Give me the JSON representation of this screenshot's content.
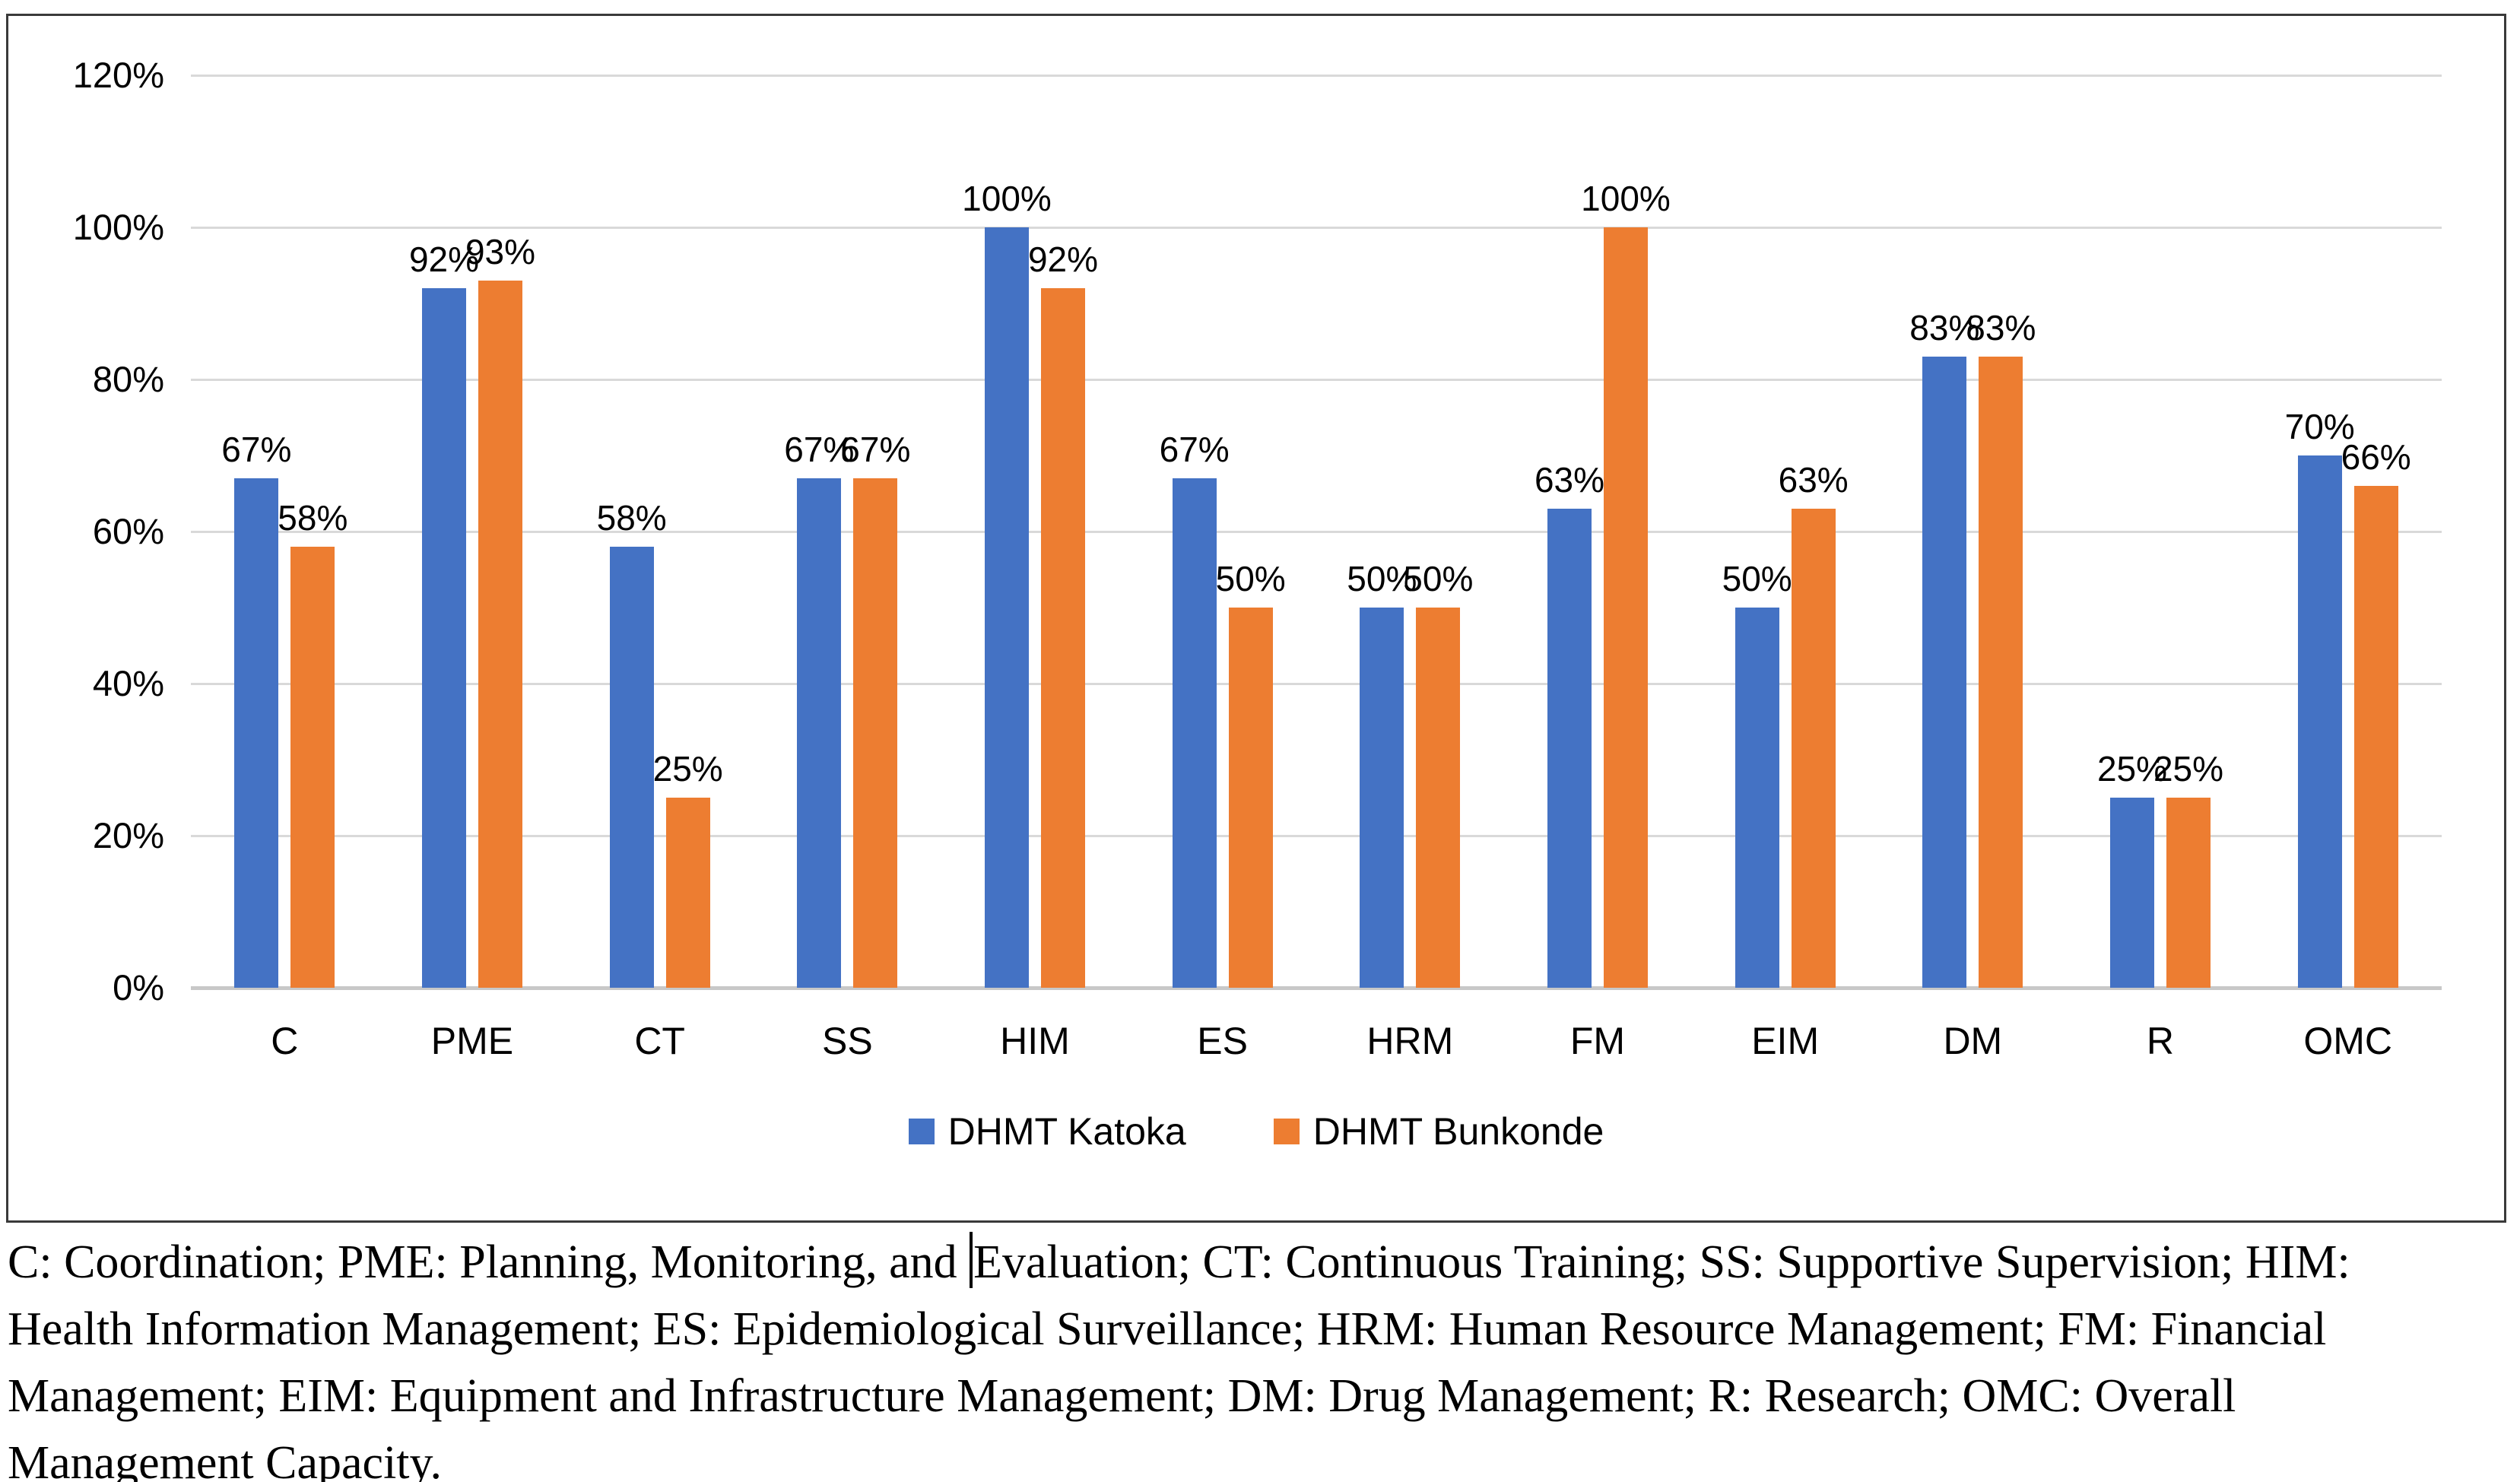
{
  "chart_data": {
    "type": "bar",
    "categories": [
      "C",
      "PME",
      "CT",
      "SS",
      "HIM",
      "ES",
      "HRM",
      "FM",
      "EIM",
      "DM",
      "R",
      "OMC"
    ],
    "series": [
      {
        "name": "DHMT Katoka",
        "color": "#4472C4",
        "values": [
          67,
          92,
          58,
          67,
          100,
          67,
          50,
          63,
          50,
          83,
          25,
          70
        ]
      },
      {
        "name": "DHMT Bunkonde",
        "color": "#ED7D31",
        "values": [
          58,
          93,
          25,
          67,
          92,
          50,
          50,
          100,
          63,
          83,
          25,
          66
        ]
      }
    ],
    "value_suffix": "%",
    "title": "",
    "xlabel": "",
    "ylabel": "",
    "ylim": [
      0,
      120
    ],
    "ytick_step": 20,
    "ytick_labels": [
      "0%",
      "20%",
      "40%",
      "60%",
      "80%",
      "100%",
      "120%"
    ],
    "grid": true,
    "data_labels": true,
    "legend_position": "bottom"
  },
  "colors": {
    "series_blue": "#4472C4",
    "series_orange": "#ED7D31",
    "gridline": "#d9d9d9",
    "axis_line": "#c8c8c8",
    "chart_border": "#3a3a3a"
  },
  "caption": {
    "line1_before_cursor": "C: Coordination; PME: Planning, Monitoring, and ",
    "line1_after_cursor": "Evaluation; CT: Continuous Training; SS: Supportive Supervision; HIM:",
    "line2": "Health Information Management; ES: Epidemiological Surveillance; HRM: Human Resource Management; FM: Financial",
    "line3": "Management; EIM: Equipment and Infrastructure Management; DM: Drug Management; R: Research; OMC: Overall",
    "line4": "Management Capacity."
  }
}
